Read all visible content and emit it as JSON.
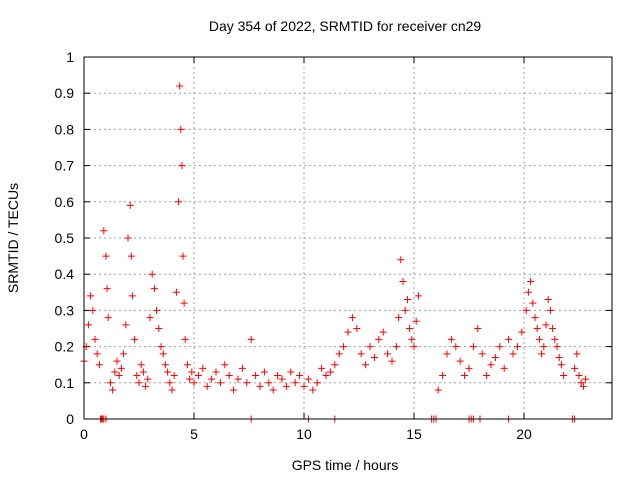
{
  "chart_data": {
    "type": "scatter",
    "title": "Day 354 of 2022, SRMTID for receiver cn29",
    "xlabel": "GPS time / hours",
    "ylabel": "SRMTID / TECUs",
    "xlim": [
      0,
      24
    ],
    "ylim": [
      0,
      1
    ],
    "xticks": [
      0,
      5,
      10,
      15,
      20
    ],
    "xtick_labels": [
      "0",
      "5",
      "10",
      "15",
      "20"
    ],
    "yticks": [
      0,
      0.1,
      0.2,
      0.3,
      0.4,
      0.5,
      0.6,
      0.7,
      0.8,
      0.9,
      1
    ],
    "ytick_labels": [
      "0",
      "0.1",
      "0.2",
      "0.3",
      "0.4",
      "0.5",
      "0.6",
      "0.7",
      "0.8",
      "0.9",
      "1"
    ],
    "grid": true,
    "marker": "plus",
    "series": [
      {
        "name": "SRMTID",
        "color": "#ff0000",
        "x": [
          0.0,
          0.1,
          0.2,
          0.3,
          0.4,
          0.5,
          0.6,
          0.7,
          0.9,
          1.0,
          1.05,
          1.1,
          1.2,
          1.3,
          1.4,
          1.5,
          1.6,
          1.7,
          1.8,
          1.9,
          2.0,
          2.1,
          2.15,
          2.2,
          2.3,
          2.4,
          2.5,
          2.6,
          2.7,
          2.8,
          2.9,
          3.0,
          3.1,
          3.2,
          3.3,
          3.4,
          3.5,
          3.6,
          3.7,
          3.8,
          3.9,
          4.0,
          4.1,
          4.2,
          4.3,
          4.35,
          4.4,
          4.45,
          4.5,
          4.55,
          4.6,
          4.7,
          4.8,
          4.9,
          5.0,
          5.2,
          5.4,
          5.6,
          5.8,
          6.0,
          6.2,
          6.4,
          6.6,
          6.8,
          7.0,
          7.2,
          7.4,
          7.6,
          7.8,
          8.0,
          8.2,
          8.4,
          8.6,
          8.8,
          9.0,
          9.2,
          9.4,
          9.6,
          9.8,
          10.0,
          10.2,
          10.4,
          10.6,
          10.8,
          11.0,
          11.2,
          11.4,
          11.6,
          11.8,
          12.0,
          12.2,
          12.4,
          12.6,
          12.8,
          13.0,
          13.2,
          13.4,
          13.6,
          13.8,
          14.0,
          14.2,
          14.3,
          14.4,
          14.5,
          14.6,
          14.7,
          14.8,
          14.9,
          15.0,
          15.1,
          15.2,
          16.1,
          16.3,
          16.5,
          16.7,
          16.9,
          17.1,
          17.3,
          17.5,
          17.7,
          17.9,
          18.1,
          18.3,
          18.5,
          18.7,
          18.9,
          19.1,
          19.3,
          19.5,
          19.7,
          19.9,
          20.1,
          20.2,
          20.3,
          20.4,
          20.5,
          20.6,
          20.7,
          20.8,
          20.9,
          21.0,
          21.1,
          21.2,
          21.3,
          21.4,
          21.5,
          21.6,
          21.7,
          21.8,
          22.3,
          22.4,
          22.5,
          22.6,
          22.7,
          22.8
        ],
        "y": [
          0.16,
          0.2,
          0.26,
          0.34,
          0.3,
          0.22,
          0.18,
          0.15,
          0.52,
          0.45,
          0.36,
          0.28,
          0.1,
          0.08,
          0.13,
          0.16,
          0.12,
          0.14,
          0.18,
          0.26,
          0.5,
          0.59,
          0.45,
          0.34,
          0.22,
          0.12,
          0.1,
          0.15,
          0.13,
          0.09,
          0.11,
          0.28,
          0.4,
          0.36,
          0.3,
          0.25,
          0.2,
          0.18,
          0.15,
          0.13,
          0.1,
          0.08,
          0.12,
          0.35,
          0.6,
          0.92,
          0.8,
          0.7,
          0.45,
          0.32,
          0.22,
          0.15,
          0.11,
          0.13,
          0.1,
          0.12,
          0.14,
          0.09,
          0.11,
          0.13,
          0.1,
          0.15,
          0.12,
          0.08,
          0.11,
          0.14,
          0.1,
          0.22,
          0.12,
          0.09,
          0.13,
          0.1,
          0.08,
          0.12,
          0.11,
          0.09,
          0.13,
          0.1,
          0.12,
          0.09,
          0.11,
          0.08,
          0.1,
          0.14,
          0.12,
          0.13,
          0.15,
          0.18,
          0.2,
          0.24,
          0.28,
          0.25,
          0.18,
          0.15,
          0.2,
          0.17,
          0.22,
          0.24,
          0.18,
          0.16,
          0.2,
          0.28,
          0.44,
          0.38,
          0.3,
          0.33,
          0.25,
          0.22,
          0.2,
          0.27,
          0.34,
          0.08,
          0.12,
          0.18,
          0.22,
          0.2,
          0.16,
          0.12,
          0.14,
          0.2,
          0.25,
          0.18,
          0.12,
          0.15,
          0.17,
          0.2,
          0.14,
          0.22,
          0.18,
          0.2,
          0.24,
          0.3,
          0.35,
          0.38,
          0.32,
          0.28,
          0.25,
          0.22,
          0.18,
          0.2,
          0.26,
          0.33,
          0.3,
          0.25,
          0.22,
          0.2,
          0.17,
          0.15,
          0.12,
          0.14,
          0.18,
          0.12,
          0.1,
          0.09,
          0.11
        ],
        "zero_x": [
          0.75,
          0.8,
          0.85,
          0.9,
          1.0,
          7.6,
          10.2,
          11.4,
          15.8,
          15.9,
          16.0,
          17.5,
          17.6,
          17.7,
          18.0,
          19.3,
          22.2,
          22.3
        ]
      }
    ]
  }
}
